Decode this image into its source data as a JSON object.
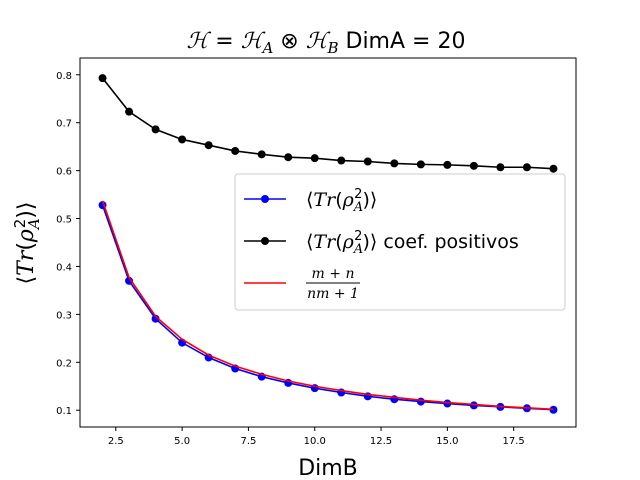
{
  "chart_data": {
    "type": "line",
    "title": "DimA = 20",
    "title_math": "ℋ = ℋ_A ⊗ ℋ_B",
    "xlabel": "DimB",
    "ylabel": "⟨Tr(ρ_A²)⟩",
    "xlim": [
      1.15,
      19.85
    ],
    "ylim": [
      0.065,
      0.835
    ],
    "xticks": [
      "2.5",
      "5.0",
      "7.5",
      "10.0",
      "12.5",
      "15.0",
      "17.5"
    ],
    "yticks": [
      "0.1",
      "0.2",
      "0.3",
      "0.4",
      "0.5",
      "0.6",
      "0.7",
      "0.8"
    ],
    "grid": false,
    "legend_position": "center-right",
    "series": [
      {
        "name": "⟨Tr(ρ_A²)⟩",
        "color": "#0000ff",
        "marker": "circle",
        "x": [
          2,
          3,
          4,
          5,
          6,
          7,
          8,
          9,
          10,
          11,
          12,
          13,
          14,
          15,
          16,
          17,
          18,
          19
        ],
        "y": [
          0.528,
          0.37,
          0.291,
          0.241,
          0.21,
          0.187,
          0.17,
          0.157,
          0.146,
          0.137,
          0.129,
          0.123,
          0.118,
          0.114,
          0.11,
          0.107,
          0.104,
          0.101
        ]
      },
      {
        "name": "⟨Tr(ρ_A²)⟩ coef. positivos",
        "color": "#000000",
        "marker": "circle",
        "x": [
          2,
          3,
          4,
          5,
          6,
          7,
          8,
          9,
          10,
          11,
          12,
          13,
          14,
          15,
          16,
          17,
          18,
          19
        ],
        "y": [
          0.793,
          0.723,
          0.686,
          0.665,
          0.653,
          0.641,
          0.634,
          0.628,
          0.626,
          0.621,
          0.619,
          0.615,
          0.613,
          0.612,
          0.61,
          0.607,
          0.607,
          0.604
        ]
      },
      {
        "name": "(m + n)/(nm + 1)",
        "color": "#ff0000",
        "marker": "none",
        "x": [
          2,
          3,
          4,
          5,
          6,
          7,
          8,
          9,
          10,
          11,
          12,
          13,
          14,
          15,
          16,
          17,
          18,
          19
        ],
        "y": [
          0.537,
          0.377,
          0.296,
          0.248,
          0.215,
          0.192,
          0.175,
          0.161,
          0.15,
          0.141,
          0.133,
          0.127,
          0.121,
          0.116,
          0.112,
          0.108,
          0.105,
          0.102
        ]
      }
    ]
  },
  "legend": {
    "items": [
      {
        "label": "⟨Tr(ρ_A²)⟩"
      },
      {
        "label_math": "⟨Tr(ρ_A²)⟩",
        "label_text": " coef. positivos"
      },
      {
        "numerator": "m + n",
        "denominator": "nm + 1"
      }
    ]
  }
}
